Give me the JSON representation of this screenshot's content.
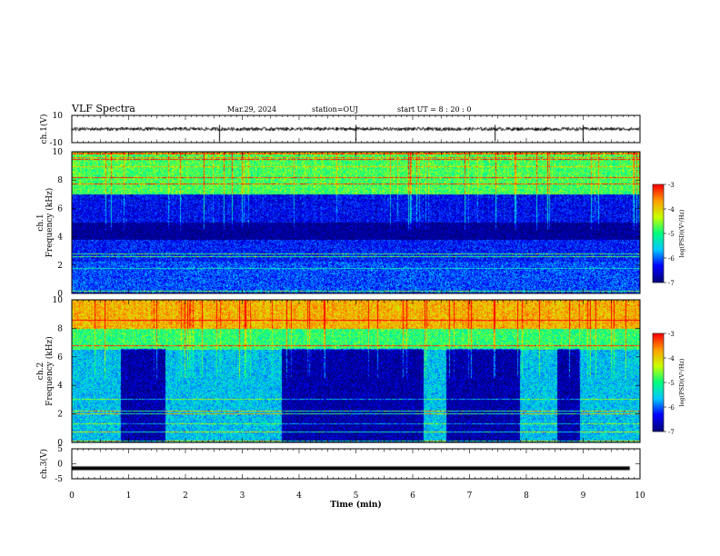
{
  "header": {
    "title": "VLF Spectra",
    "date": "Mar.29, 2024",
    "station": "station=OUJ",
    "start": "start  UT =   8 : 20 : 0"
  },
  "colors": {
    "colormap": [
      "#00007a",
      "#0000ff",
      "#00c8ff",
      "#00ff80",
      "#c8ff00",
      "#ffa000",
      "#ff0000"
    ],
    "trace": "#000000",
    "background": "#ffffff"
  },
  "chart_data": [
    {
      "type": "line",
      "name": "ch1-waveform",
      "ylabel": "ch.1(V)",
      "ylim": [
        -10,
        10
      ],
      "yticks": [
        "10",
        "-10"
      ],
      "x": [
        0,
        10
      ],
      "values_description": "",
      "mean": 0.0,
      "spikes_at_min": [
        2.6,
        5.0,
        7.45,
        9.0
      ]
    },
    {
      "type": "heatmap",
      "name": "ch1-spectrogram",
      "ylabel": "ch.1\nFrequency (kHz)",
      "ylim": [
        0,
        10
      ],
      "yticks": [
        "0",
        "2",
        "4",
        "6",
        "8",
        "10"
      ],
      "colorbar": {
        "label": "log(PSD)(V²/Hz)",
        "range": [
          -7,
          -3
        ],
        "ticks": [
          "-3",
          "-4",
          "-5",
          "-6",
          "-7"
        ]
      },
      "bands_khz": [
        {
          "from": 7.0,
          "to": 10.0,
          "level": -4.8
        },
        {
          "from": 5.0,
          "to": 7.0,
          "level": -6.4
        },
        {
          "from": 3.8,
          "to": 5.0,
          "level": -6.9
        },
        {
          "from": 2.2,
          "to": 3.8,
          "level": -6.3
        },
        {
          "from": 0.0,
          "to": 2.2,
          "level": -6.1
        }
      ]
    },
    {
      "type": "heatmap",
      "name": "ch2-spectrogram",
      "ylabel": "ch.2\nFrequency (kHz)",
      "ylim": [
        0,
        10
      ],
      "yticks": [
        "0",
        "2",
        "4",
        "6",
        "8",
        "10"
      ],
      "colorbar": {
        "label": "log(PSD)(V²/Hz)",
        "range": [
          -7,
          -3
        ],
        "ticks": [
          "-3",
          "-4",
          "-5",
          "-6",
          "-7"
        ]
      },
      "bands_khz": [
        {
          "from": 8.0,
          "to": 10.0,
          "level": -3.8
        },
        {
          "from": 6.5,
          "to": 8.0,
          "level": -4.9
        },
        {
          "from": 0.0,
          "to": 6.5,
          "level": -5.6
        }
      ],
      "dark_intervals_min": [
        [
          0.85,
          1.65
        ],
        [
          3.7,
          6.2
        ],
        [
          6.6,
          7.9
        ],
        [
          8.55,
          8.95
        ]
      ]
    },
    {
      "type": "line",
      "name": "ch3-waveform",
      "ylabel": "ch.3(V)",
      "ylim": [
        -5,
        5
      ],
      "yticks": [
        "5",
        "0",
        "-5"
      ],
      "mean": -1.5
    }
  ],
  "xaxis": {
    "label": "Time (min)",
    "xlim": [
      0,
      10
    ],
    "ticks": [
      "0",
      "1",
      "2",
      "3",
      "4",
      "5",
      "6",
      "7",
      "8",
      "9",
      "10"
    ]
  }
}
